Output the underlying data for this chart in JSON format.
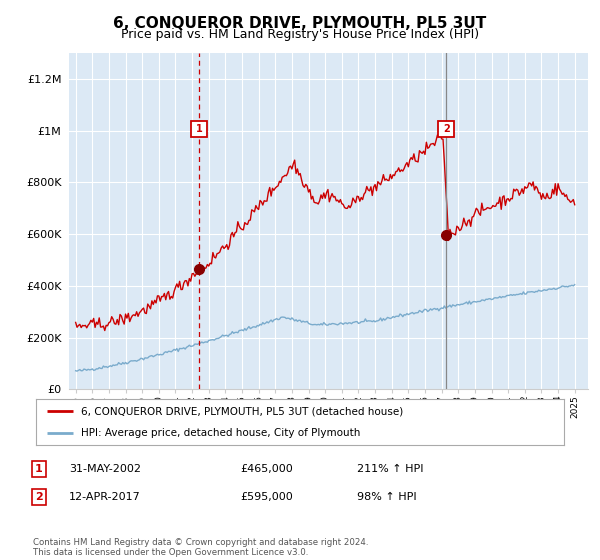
{
  "title": "6, CONQUEROR DRIVE, PLYMOUTH, PL5 3UT",
  "subtitle": "Price paid vs. HM Land Registry's House Price Index (HPI)",
  "bg_color": "#dce9f5",
  "grid_color": "#ffffff",
  "red_color": "#cc0000",
  "blue_color": "#7aabcc",
  "ylim": [
    0,
    1300000
  ],
  "yticks": [
    0,
    200000,
    400000,
    600000,
    800000,
    1000000,
    1200000
  ],
  "ytick_labels": [
    "£0",
    "£200K",
    "£400K",
    "£600K",
    "£800K",
    "£1M",
    "£1.2M"
  ],
  "sale1_year": 2002.417,
  "sale2_year": 2017.292,
  "sale1_price": 465000,
  "sale2_price": 595000,
  "legend_line1": "6, CONQUEROR DRIVE, PLYMOUTH, PL5 3UT (detached house)",
  "legend_line2": "HPI: Average price, detached house, City of Plymouth",
  "table_row1_num": "1",
  "table_row1_date": "31-MAY-2002",
  "table_row1_price": "£465,000",
  "table_row1_hpi": "211% ↑ HPI",
  "table_row2_num": "2",
  "table_row2_date": "12-APR-2017",
  "table_row2_price": "£595,000",
  "table_row2_hpi": "98% ↑ HPI",
  "footnote": "Contains HM Land Registry data © Crown copyright and database right 2024.\nThis data is licensed under the Open Government Licence v3.0."
}
